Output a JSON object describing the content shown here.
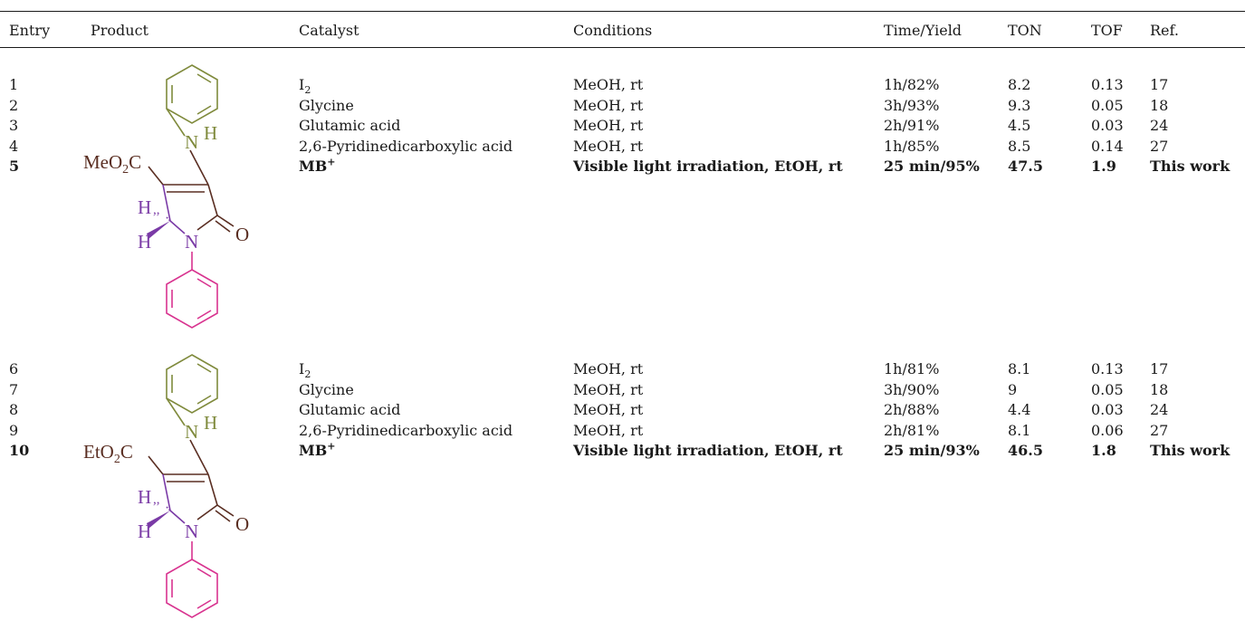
{
  "table": {
    "headers": {
      "entry": "Entry",
      "product": "Product",
      "catalyst": "Catalyst",
      "conditions": "Conditions",
      "time_yield": "Time/Yield",
      "ton": "TON",
      "tof": "TOF",
      "ref": "Ref."
    },
    "groups": [
      {
        "product": {
          "ester": "MeO",
          "ester_sub": "2",
          "ester_tail": "C",
          "nh_n": "N",
          "nh_h": "H",
          "h_top": "H",
          "h_bottom": "H",
          "ring_n": "N",
          "carbonyl_o": "O"
        },
        "rows": [
          {
            "entry": "1",
            "cat_main": "I",
            "cat_sub": "2",
            "cat_sup": "",
            "conditions": "MeOH, rt",
            "time_yield": "1h/82%",
            "ton": "8.2",
            "tof": "0.13",
            "ref": "17",
            "bold": false
          },
          {
            "entry": "2",
            "cat_main": "Glycine",
            "cat_sub": "",
            "cat_sup": "",
            "conditions": "MeOH, rt",
            "time_yield": "3h/93%",
            "ton": "9.3",
            "tof": "0.05",
            "ref": "18",
            "bold": false
          },
          {
            "entry": "3",
            "cat_main": "Glutamic acid",
            "cat_sub": "",
            "cat_sup": "",
            "conditions": "MeOH, rt",
            "time_yield": "2h/91%",
            "ton": "4.5",
            "tof": "0.03",
            "ref": "24",
            "bold": false
          },
          {
            "entry": "4",
            "cat_main": "2,6-Pyridinedicarboxylic acid",
            "cat_sub": "",
            "cat_sup": "",
            "conditions": "MeOH, rt",
            "time_yield": "1h/85%",
            "ton": "8.5",
            "tof": "0.14",
            "ref": "27",
            "bold": false
          },
          {
            "entry": "5",
            "cat_main": "MB",
            "cat_sub": "",
            "cat_sup": "+",
            "conditions": "Visible light irradiation, EtOH, rt",
            "time_yield": "25 min/95%",
            "ton": "47.5",
            "tof": "1.9",
            "ref": "This work",
            "bold": true
          }
        ]
      },
      {
        "product": {
          "ester": "EtO",
          "ester_sub": "2",
          "ester_tail": "C",
          "nh_n": "N",
          "nh_h": "H",
          "h_top": "H",
          "h_bottom": "H",
          "ring_n": "N",
          "carbonyl_o": "O"
        },
        "rows": [
          {
            "entry": "6",
            "cat_main": "I",
            "cat_sub": "2",
            "cat_sup": "",
            "conditions": "MeOH, rt",
            "time_yield": "1h/81%",
            "ton": "8.1",
            "tof": "0.13",
            "ref": "17",
            "bold": false
          },
          {
            "entry": "7",
            "cat_main": "Glycine",
            "cat_sub": "",
            "cat_sup": "",
            "conditions": "MeOH, rt",
            "time_yield": "3h/90%",
            "ton": "9",
            "tof": "0.05",
            "ref": "18",
            "bold": false
          },
          {
            "entry": "8",
            "cat_main": "Glutamic acid",
            "cat_sub": "",
            "cat_sup": "",
            "conditions": "MeOH, rt",
            "time_yield": "2h/88%",
            "ton": "4.4",
            "tof": "0.03",
            "ref": "24",
            "bold": false
          },
          {
            "entry": "9",
            "cat_main": "2,6-Pyridinedicarboxylic acid",
            "cat_sub": "",
            "cat_sup": "",
            "conditions": "MeOH, rt",
            "time_yield": "2h/81%",
            "ton": "8.1",
            "tof": "0.06",
            "ref": "27",
            "bold": false
          },
          {
            "entry": "10",
            "cat_main": "MB",
            "cat_sub": "",
            "cat_sup": "+",
            "conditions": "Visible light irradiation, EtOH, rt",
            "time_yield": "25 min/93%",
            "ton": "46.5",
            "tof": "1.8",
            "ref": "This work",
            "bold": true
          }
        ]
      }
    ],
    "colors": {
      "aniline_ring": "#7f8a3c",
      "ester": "#5a2e22",
      "stereo_center": "#7a3aa6",
      "n_phenyl_ring": "#d8338f",
      "lactam": "#5a2e22"
    }
  }
}
